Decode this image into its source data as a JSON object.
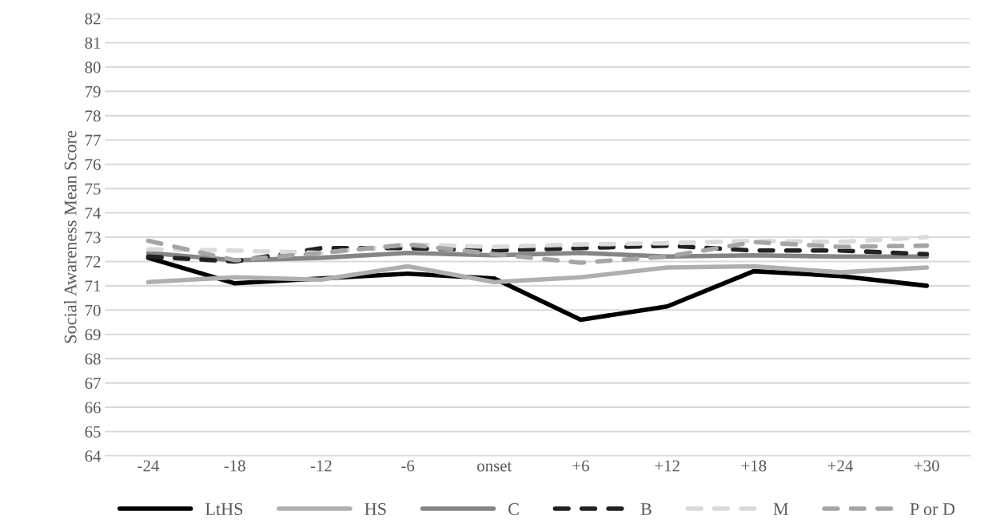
{
  "chart_data": {
    "type": "line",
    "ylabel": "Social Awareness Mean Score",
    "categories": [
      "-24",
      "-18",
      "-12",
      "-6",
      "onset",
      "+6",
      "+12",
      "+18",
      "+24",
      "+30"
    ],
    "series": [
      {
        "name": "LtHS",
        "color": "#000000",
        "line_style": "solid",
        "values": [
          72.15,
          71.1,
          71.3,
          71.5,
          71.3,
          69.6,
          70.15,
          71.6,
          71.4,
          71.0
        ]
      },
      {
        "name": "HS",
        "color": "#afafaf",
        "line_style": "solid",
        "values": [
          71.15,
          71.35,
          71.25,
          71.8,
          71.15,
          71.35,
          71.75,
          71.8,
          71.55,
          71.75
        ]
      },
      {
        "name": "C",
        "color": "#858585",
        "line_style": "solid",
        "values": [
          72.35,
          72.05,
          72.15,
          72.35,
          72.25,
          72.35,
          72.2,
          72.25,
          72.2,
          72.2
        ]
      },
      {
        "name": "B",
        "color": "#222222",
        "line_style": "dashed",
        "values": [
          72.2,
          72.0,
          72.55,
          72.55,
          72.45,
          72.55,
          72.65,
          72.45,
          72.45,
          72.3
        ]
      },
      {
        "name": "M",
        "color": "#dadada",
        "line_style": "dashed",
        "values": [
          72.5,
          72.45,
          72.35,
          72.7,
          72.6,
          72.7,
          72.75,
          72.85,
          72.8,
          73.0
        ]
      },
      {
        "name": "P or D",
        "color": "#a5a5a5",
        "line_style": "dashed",
        "values": [
          72.85,
          72.05,
          72.35,
          72.7,
          72.3,
          71.95,
          72.2,
          72.8,
          72.6,
          72.65
        ]
      }
    ],
    "ylim": [
      64,
      82
    ],
    "yticks": [
      64,
      65,
      66,
      67,
      68,
      69,
      70,
      71,
      72,
      73,
      74,
      75,
      76,
      77,
      78,
      79,
      80,
      81,
      82
    ],
    "grid": "y",
    "legend": "bottom",
    "marker": "none"
  }
}
